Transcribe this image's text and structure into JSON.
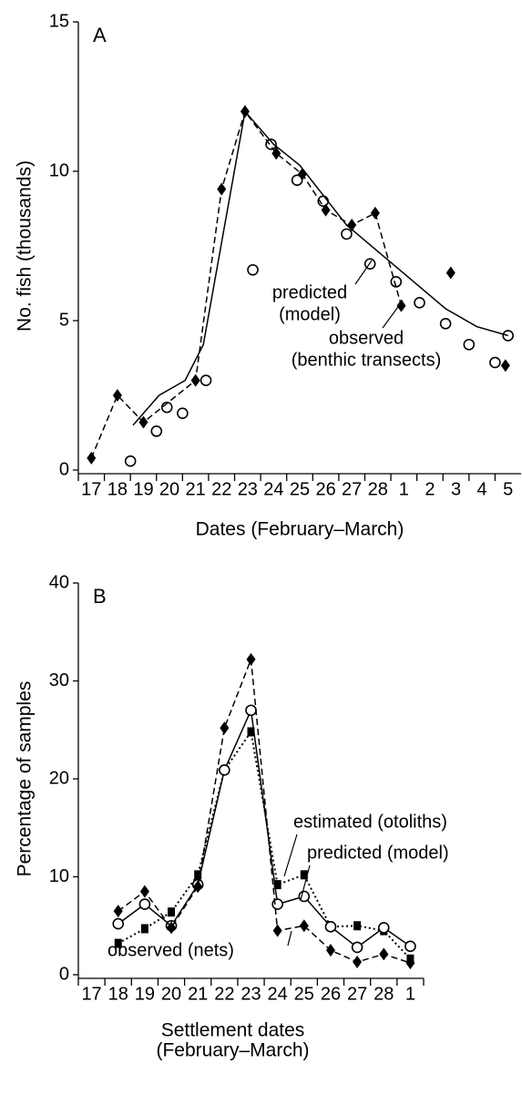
{
  "chart_data": [
    {
      "type": "line",
      "panel_label": "A",
      "ylabel": "No. fish (thousands)",
      "xlabel": "Dates (February–March)",
      "xlim": [
        -0.5,
        16.5
      ],
      "xticks": [
        {
          "value": 0,
          "label": "17"
        },
        {
          "value": 1,
          "label": "18"
        },
        {
          "value": 2,
          "label": "19"
        },
        {
          "value": 3,
          "label": "20"
        },
        {
          "value": 4,
          "label": "21"
        },
        {
          "value": 5,
          "label": "22"
        },
        {
          "value": 6,
          "label": "23"
        },
        {
          "value": 7,
          "label": "24"
        },
        {
          "value": 8,
          "label": "25"
        },
        {
          "value": 9,
          "label": "26"
        },
        {
          "value": 10,
          "label": "27"
        },
        {
          "value": 11,
          "label": "28"
        },
        {
          "value": 12,
          "label": "1"
        },
        {
          "value": 13,
          "label": "2"
        },
        {
          "value": 14,
          "label": "3"
        },
        {
          "value": 15,
          "label": "4"
        },
        {
          "value": 16,
          "label": "5"
        }
      ],
      "ylim": [
        0,
        15
      ],
      "yticks": [
        0,
        5,
        10,
        15
      ],
      "series": [
        {
          "color": "#000000",
          "marker": "circle",
          "line": "none",
          "x": [
            1.5,
            2.5,
            2.9,
            3.5,
            4.4,
            6.2,
            6.9,
            7.9,
            8.9,
            9.8,
            10.7,
            11.7,
            12.6,
            13.6,
            14.5,
            15.5,
            16.0
          ],
          "values": [
            0.3,
            1.3,
            2.1,
            1.9,
            3.0,
            6.7,
            10.9,
            9.7,
            9.0,
            7.9,
            6.9,
            6.3,
            5.6,
            4.9,
            4.2,
            3.6,
            4.5
          ]
        },
        {
          "color": "#000000",
          "marker": "none",
          "line": "solid",
          "x": [
            1.6,
            2.6,
            3.6,
            4.3,
            5.9,
            7.0,
            8.0,
            9.8,
            11.7,
            13.6,
            14.8,
            16.0
          ],
          "values": [
            1.5,
            2.5,
            3.0,
            4.2,
            12.0,
            10.9,
            10.2,
            8.2,
            6.8,
            5.4,
            4.8,
            4.5
          ]
        },
        {
          "color": "#000000",
          "marker": "diamond",
          "line": "dashed",
          "x": [
            0.0,
            1.0,
            2.0,
            4.0,
            5.0,
            5.9,
            7.1,
            8.1,
            9.0,
            10.0,
            10.9,
            11.9
          ],
          "values": [
            0.4,
            2.5,
            1.6,
            3.0,
            9.4,
            12.0,
            10.6,
            9.9,
            8.7,
            8.2,
            8.6,
            5.5
          ]
        },
        {
          "color": "#000000",
          "marker": "diamond",
          "line": "none",
          "x": [
            13.8,
            15.9
          ],
          "values": [
            6.6,
            3.5
          ]
        }
      ],
      "annotations": [
        {
          "lines": [
            "predicted",
            "(model)"
          ]
        },
        {
          "lines": [
            "observed",
            "(benthic transects)"
          ]
        }
      ]
    },
    {
      "type": "line",
      "panel_label": "B",
      "ylabel": "Percentage of samples",
      "xlabel": [
        "Settlement dates",
        "(February–March)"
      ],
      "categories": [
        "17",
        "18",
        "19",
        "20",
        "21",
        "22",
        "23",
        "24",
        "25",
        "26",
        "27",
        "28",
        "1"
      ],
      "ylim": [
        0,
        40
      ],
      "yticks": [
        0,
        10,
        20,
        30,
        40
      ],
      "series": [
        {
          "name": "estimated (otoliths)",
          "color": "#000000",
          "marker": "square",
          "line": "dotted",
          "values": [
            null,
            3.2,
            4.7,
            6.4,
            10.2,
            20.9,
            24.8,
            9.2,
            10.2,
            4.9,
            5.0,
            4.5,
            1.6
          ]
        },
        {
          "name": "predicted (model)",
          "color": "#000000",
          "marker": "circle",
          "line": "solid",
          "values": [
            null,
            5.2,
            7.2,
            5.0,
            9.2,
            20.9,
            27.0,
            7.2,
            8.0,
            4.9,
            2.8,
            4.8,
            2.9
          ]
        },
        {
          "name": "observed (nets)",
          "color": "#000000",
          "marker": "diamond",
          "line": "dashed",
          "values": [
            null,
            6.5,
            8.5,
            4.8,
            9.0,
            25.2,
            32.2,
            4.5,
            5.0,
            2.5,
            1.3,
            2.1,
            1.2
          ]
        }
      ]
    }
  ]
}
